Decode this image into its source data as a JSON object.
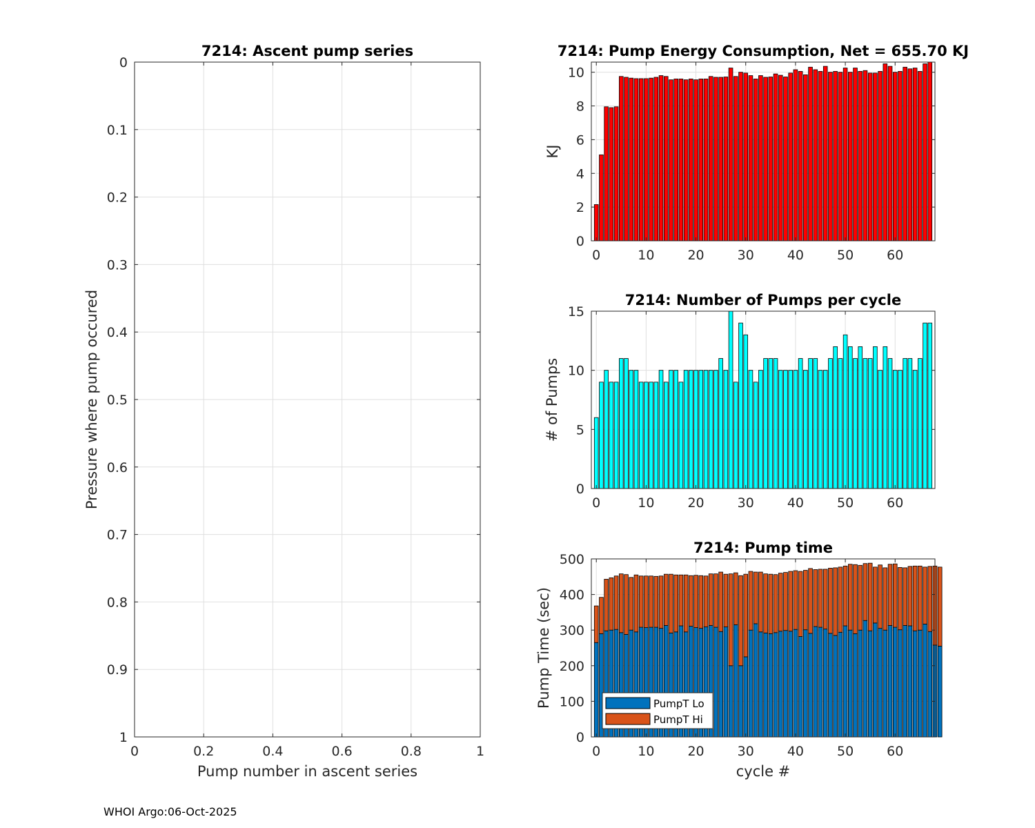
{
  "footer": "WHOI Argo:06-Oct-2025",
  "chart_data": [
    {
      "id": "ascent",
      "type": "scatter",
      "title": "7214: Ascent pump series",
      "xlabel": "Pump number in ascent series",
      "ylabel": "Pressure where pump occured",
      "xlim": [
        0,
        1
      ],
      "ylim": [
        0,
        1
      ],
      "y_reversed": true,
      "grid": true,
      "xticks": [
        0,
        0.2,
        0.4,
        0.6,
        0.8,
        1
      ],
      "xtick_labels": [
        "0",
        "0.2",
        "0.4",
        "0.6",
        "0.8",
        "1"
      ],
      "yticks": [
        0,
        0.1,
        0.2,
        0.3,
        0.4,
        0.5,
        0.6,
        0.7,
        0.8,
        0.9,
        1
      ],
      "ytick_labels": [
        "0",
        "0.1",
        "0.2",
        "0.3",
        "0.4",
        "0.5",
        "0.6",
        "0.7",
        "0.8",
        "0.9",
        "1"
      ],
      "series": []
    },
    {
      "id": "energy",
      "type": "bar",
      "title": "7214: Pump Energy Consumption,  Net = 655.70 KJ",
      "xlabel": "",
      "ylabel": "KJ",
      "xlim": [
        -1,
        68
      ],
      "ylim": [
        0,
        10.6
      ],
      "grid": true,
      "xticks": [
        0,
        10,
        20,
        30,
        40,
        50,
        60
      ],
      "xtick_labels": [
        "0",
        "10",
        "20",
        "30",
        "40",
        "50",
        "60"
      ],
      "yticks": [
        0,
        2,
        4,
        6,
        8,
        10
      ],
      "ytick_labels": [
        "0",
        "2",
        "4",
        "6",
        "8",
        "10"
      ],
      "color": "#ff0000",
      "values": [
        2.15,
        5.1,
        7.95,
        7.9,
        7.95,
        9.75,
        9.7,
        9.65,
        9.62,
        9.62,
        9.62,
        9.65,
        9.7,
        9.8,
        9.75,
        9.55,
        9.6,
        9.6,
        9.55,
        9.6,
        9.55,
        9.6,
        9.6,
        9.75,
        9.7,
        9.7,
        9.72,
        10.25,
        9.75,
        10.0,
        9.95,
        9.8,
        9.6,
        9.8,
        9.7,
        9.72,
        9.9,
        9.82,
        9.72,
        9.95,
        10.15,
        10.05,
        9.85,
        10.3,
        10.15,
        10.05,
        10.35,
        10.0,
        10.05,
        10.0,
        10.25,
        10.0,
        10.25,
        10.05,
        10.1,
        9.95,
        9.95,
        10.05,
        10.5,
        10.35,
        10.0,
        10.05,
        10.3,
        10.2,
        10.25,
        10.05,
        10.5,
        10.6
      ]
    },
    {
      "id": "npumps",
      "type": "bar",
      "title": "7214: Number of Pumps per cycle",
      "xlabel": "",
      "ylabel": "# of Pumps",
      "xlim": [
        -1,
        68
      ],
      "ylim": [
        0,
        15
      ],
      "grid": true,
      "xticks": [
        0,
        10,
        20,
        30,
        40,
        50,
        60
      ],
      "xtick_labels": [
        "0",
        "10",
        "20",
        "30",
        "40",
        "50",
        "60"
      ],
      "yticks": [
        0,
        5,
        10,
        15
      ],
      "ytick_labels": [
        "0",
        "5",
        "10",
        "15"
      ],
      "color": "#00ffff",
      "values": [
        6,
        9,
        10,
        9,
        9,
        11,
        11,
        10,
        10,
        9,
        9,
        9,
        9,
        10,
        9,
        10,
        10,
        9,
        10,
        10,
        10,
        10,
        10,
        10,
        10,
        11,
        10,
        15,
        9,
        14,
        13,
        10,
        9,
        10,
        11,
        11,
        11,
        10,
        10,
        10,
        10,
        11,
        10,
        11,
        11,
        10,
        10,
        11,
        12,
        11,
        13,
        12,
        11,
        12,
        11,
        11,
        12,
        10,
        12,
        11,
        10,
        10,
        11,
        11,
        10,
        11,
        14,
        14
      ]
    },
    {
      "id": "pumptime",
      "type": "bar",
      "stacked": true,
      "title": "7214: Pump time",
      "xlabel": "cycle #",
      "ylabel": "Pump Time (sec)",
      "xlim": [
        -1,
        68
      ],
      "ylim": [
        0,
        500
      ],
      "grid": true,
      "xticks": [
        0,
        10,
        20,
        30,
        40,
        50,
        60
      ],
      "xtick_labels": [
        "0",
        "10",
        "20",
        "30",
        "40",
        "50",
        "60"
      ],
      "yticks": [
        0,
        100,
        200,
        300,
        400,
        500
      ],
      "ytick_labels": [
        "0",
        "100",
        "200",
        "300",
        "400",
        "500"
      ],
      "legend": "bottom-left",
      "series": [
        {
          "name": "PumpT Lo",
          "color": "#0072bd",
          "values": [
            265,
            290,
            298,
            300,
            302,
            293,
            288,
            300,
            295,
            308,
            307,
            308,
            308,
            305,
            313,
            292,
            295,
            312,
            295,
            311,
            307,
            305,
            309,
            313,
            308,
            296,
            309,
            200,
            315,
            200,
            225,
            300,
            318,
            295,
            292,
            290,
            293,
            297,
            299,
            297,
            302,
            282,
            301,
            291,
            310,
            308,
            303,
            291,
            285,
            294,
            312,
            300,
            290,
            300,
            327,
            298,
            320,
            305,
            300,
            313,
            308,
            301,
            313,
            312,
            298,
            300,
            317,
            296,
            258,
            255
          ]
        },
        {
          "name": "PumpT Hi",
          "color": "#d95319",
          "values": [
            103,
            102,
            145,
            147,
            150,
            165,
            168,
            148,
            160,
            144,
            145,
            144,
            143,
            147,
            144,
            165,
            160,
            143,
            160,
            142,
            147,
            148,
            143,
            145,
            150,
            167,
            148,
            258,
            146,
            253,
            232,
            165,
            145,
            168,
            166,
            167,
            163,
            163,
            163,
            168,
            165,
            183,
            167,
            182,
            160,
            163,
            168,
            183,
            190,
            183,
            168,
            185,
            194,
            182,
            160,
            190,
            157,
            178,
            175,
            172,
            178,
            175,
            162,
            167,
            182,
            180,
            160,
            183,
            222,
            222
          ]
        }
      ]
    }
  ]
}
